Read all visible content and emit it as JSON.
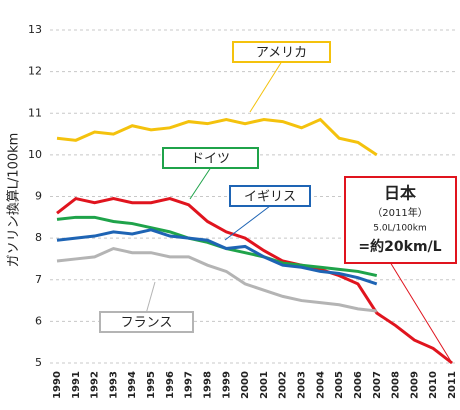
{
  "chart_data": {
    "type": "line",
    "y_label": "ガソリン換算L/100km",
    "categories": [
      "1990",
      "1991",
      "1992",
      "1993",
      "1994",
      "1995",
      "1996",
      "1997",
      "1998",
      "1999",
      "2000",
      "2001",
      "2002",
      "2003",
      "2004",
      "2005",
      "2006",
      "2007",
      "2008",
      "2009",
      "2010",
      "2011"
    ],
    "series": [
      {
        "name": "アメリカ",
        "color": "#f4c20d",
        "values": [
          10.4,
          10.35,
          10.55,
          10.5,
          10.7,
          10.6,
          10.65,
          10.8,
          10.75,
          10.85,
          10.75,
          10.85,
          10.8,
          10.65,
          10.85,
          10.4,
          10.3,
          10.0,
          null,
          null,
          null,
          null
        ]
      },
      {
        "name": "日本",
        "color": "#e0141e",
        "values": [
          8.6,
          8.95,
          8.85,
          8.95,
          8.85,
          8.85,
          8.95,
          8.8,
          8.4,
          8.15,
          8.0,
          7.7,
          7.45,
          7.35,
          7.25,
          7.1,
          6.9,
          6.2,
          5.9,
          5.55,
          5.35,
          5.0
        ]
      },
      {
        "name": "ドイツ",
        "color": "#1fa34a",
        "values": [
          8.45,
          8.5,
          8.5,
          8.4,
          8.35,
          8.25,
          8.15,
          8.0,
          7.9,
          7.75,
          7.65,
          7.55,
          7.4,
          7.35,
          7.3,
          7.25,
          7.2,
          7.1,
          null,
          null,
          null,
          null
        ]
      },
      {
        "name": "イギリス",
        "color": "#1e64b4",
        "values": [
          7.95,
          8.0,
          8.05,
          8.15,
          8.1,
          8.2,
          8.05,
          8.0,
          7.95,
          7.75,
          7.8,
          7.55,
          7.35,
          7.3,
          7.2,
          7.15,
          7.05,
          6.9,
          null,
          null,
          null,
          null
        ]
      },
      {
        "name": "フランス",
        "color": "#b4b4b4",
        "values": [
          7.45,
          7.5,
          7.55,
          7.75,
          7.65,
          7.65,
          7.55,
          7.55,
          7.35,
          7.2,
          6.9,
          6.75,
          6.6,
          6.5,
          6.45,
          6.4,
          6.3,
          6.25,
          null,
          null,
          null,
          null
        ]
      }
    ],
    "annotation": [
      "日本",
      "（2011年）",
      "5.0L/100km",
      "=約20km/L"
    ],
    "ylim": [
      5,
      13
    ],
    "yticks": [
      5,
      6,
      7,
      8,
      9,
      10,
      11,
      12,
      13
    ],
    "grid": true
  }
}
